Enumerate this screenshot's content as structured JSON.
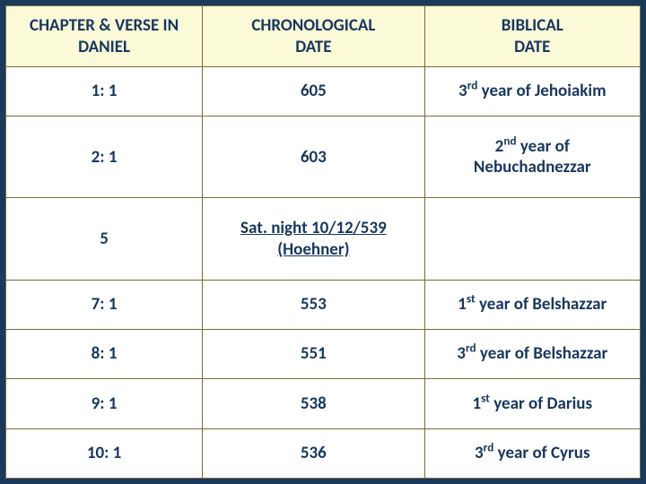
{
  "table": {
    "background_color": "#1a3a5c",
    "cell_bg": "#ffffff",
    "header_bg": "#fafad8",
    "text_color": "#17375e",
    "border_color": "#7a6a3a",
    "font_family": "Calibri",
    "header_fontsize": 19,
    "cell_fontsize": 19,
    "font_weight": "bold",
    "columns": [
      {
        "label_line1": "CHAPTER & VERSE IN",
        "label_line2": "DANIEL",
        "width_pct": 31
      },
      {
        "label_line1": "CHRONOLOGICAL",
        "label_line2": "DATE",
        "width_pct": 35
      },
      {
        "label_line1": "BIBLICAL",
        "label_line2": "DATE",
        "width_pct": 34
      }
    ],
    "rows": [
      {
        "verse": "1: 1",
        "date": {
          "text": "605",
          "underline": false
        },
        "biblical": {
          "ord": "3",
          "suffix": "rd",
          "rest": " year of Jehoiakim",
          "multiline": false
        }
      },
      {
        "verse": "2: 1",
        "date": {
          "text": "603",
          "underline": false
        },
        "biblical": {
          "ord": "2",
          "suffix": "nd",
          "rest_line1": " year of",
          "rest_line2": "Nebuchadnezzar",
          "multiline": true
        }
      },
      {
        "verse": "5",
        "date": {
          "line1": "Sat. night 10/12/539",
          "line2": "(Hoehner)",
          "underline": true,
          "multiline": true
        },
        "biblical": null
      },
      {
        "verse": "7: 1",
        "date": {
          "text": "553",
          "underline": false
        },
        "biblical": {
          "ord": "1",
          "suffix": "st",
          "rest": " year of Belshazzar",
          "multiline": false
        }
      },
      {
        "verse": "8: 1",
        "date": {
          "text": "551",
          "underline": false
        },
        "biblical": {
          "ord": "3",
          "suffix": "rd",
          "rest": " year of Belshazzar",
          "multiline": false
        }
      },
      {
        "verse": "9: 1",
        "date": {
          "text": "538",
          "underline": false
        },
        "biblical": {
          "ord": "1",
          "suffix": "st",
          "rest": " year of Darius",
          "multiline": false
        }
      },
      {
        "verse": "10: 1",
        "date": {
          "text": "536",
          "underline": false
        },
        "biblical": {
          "ord": "3",
          "suffix": "rd",
          "rest": " year of Cyrus",
          "multiline": false
        }
      }
    ]
  }
}
